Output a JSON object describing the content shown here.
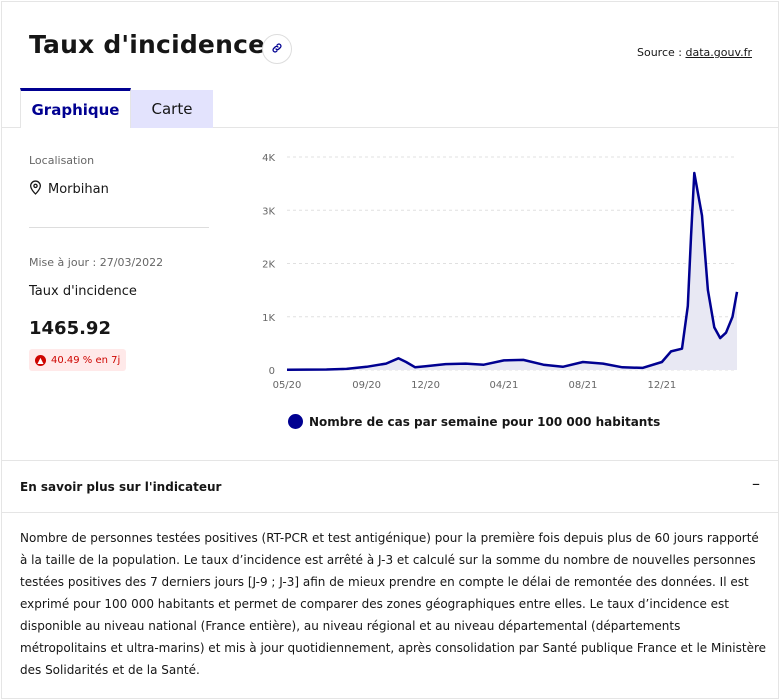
{
  "header": {
    "title": "Taux d'incidence",
    "source_prefix": "Source : ",
    "source_link": "data.gouv.fr"
  },
  "tabs": [
    {
      "label": "Graphique",
      "active": true
    },
    {
      "label": "Carte",
      "active": false
    }
  ],
  "info": {
    "location_label": "Localisation",
    "location_value": "Morbihan",
    "update_text": "Mise à jour : 27/03/2022",
    "metric_label": "Taux d'incidence",
    "metric_value": "1465.92",
    "change_badge": "40.49 % en 7j",
    "change_direction": "up"
  },
  "chart_data": {
    "type": "area",
    "series": [
      {
        "name": "Nombre de cas par semaine pour 100 000 habitants",
        "x": [
          "2020-05",
          "2020-06",
          "2020-07",
          "2020-08",
          "2020-09",
          "2020-10",
          "2020-10-20",
          "2020-11",
          "2020-11-15",
          "2020-12",
          "2021-01",
          "2021-02",
          "2021-03",
          "2021-04",
          "2021-05",
          "2021-06",
          "2021-07",
          "2021-08",
          "2021-09",
          "2021-10",
          "2021-11",
          "2021-12",
          "2021-12-15",
          "2022-01",
          "2022-01-10",
          "2022-01-15",
          "2022-01-20",
          "2022-02",
          "2022-02-10",
          "2022-02-20",
          "2022-03",
          "2022-03-10",
          "2022-03-20",
          "2022-03-27"
        ],
        "values": [
          5,
          8,
          10,
          20,
          60,
          120,
          220,
          150,
          50,
          70,
          110,
          120,
          100,
          180,
          190,
          100,
          60,
          150,
          120,
          50,
          40,
          150,
          350,
          400,
          1200,
          2500,
          3700,
          2900,
          1500,
          800,
          600,
          700,
          1000,
          1466
        ]
      }
    ],
    "xticks": [
      "05/20",
      "09/20",
      "12/20",
      "04/21",
      "08/21",
      "12/21"
    ],
    "yticks": [
      "0",
      "1K",
      "2K",
      "3K",
      "4K"
    ],
    "ylim": [
      0,
      4000
    ],
    "grid": true,
    "legend_position": "bottom",
    "colors": {
      "line": "#000091",
      "fill": "#e8e8f3",
      "grid": "#e0e0e0"
    }
  },
  "accordion": {
    "title": "En savoir plus sur l'indicateur",
    "toggle": "–",
    "body": "Nombre de personnes testées positives (RT-PCR et test antigénique) pour la première fois depuis plus de 60 jours rapporté à la taille de la population. Le taux d’incidence est arrêté à J-3 et calculé sur la somme du nombre de nouvelles personnes testées positives des 7 derniers jours [J-9 ; J-3] afin de mieux prendre en compte le délai de remontée des données. Il est exprimé pour 100 000 habitants et permet de comparer des zones géographiques entre elles. Le taux d’incidence est disponible au niveau national (France entière), au niveau régional et au niveau départemental (départements métropolitains et ultra-marins) et mis à jour quotidiennement, après consolidation par Santé publique France et le Ministère des Solidarités et de la Santé."
  },
  "icons": {
    "link": "link-icon",
    "location": "map-pin-icon",
    "badge": "arrow-up-circle-icon"
  }
}
